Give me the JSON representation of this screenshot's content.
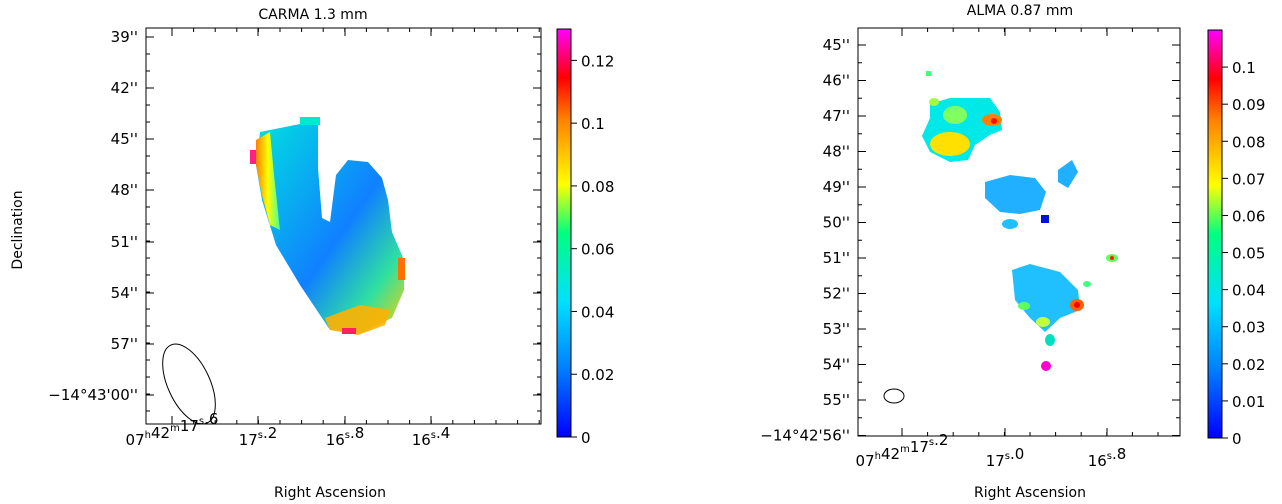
{
  "chart_data": [
    {
      "type": "heatmap",
      "title": "CARMA 1.3 mm",
      "xlabel": "Right Ascension",
      "ylabel": "Declination",
      "x_ticks": [
        "07h42m17s.6",
        "17s.2",
        "16s.8",
        "16s.4"
      ],
      "y_ticks": [
        "39''",
        "42''",
        "45''",
        "48''",
        "51''",
        "54''",
        "57''",
        "−14°43'00''"
      ],
      "colorbar": {
        "min": 0,
        "max": 0.13,
        "ticks": [
          "0",
          "0.02",
          "0.04",
          "0.06",
          "0.08",
          "0.1",
          "0.12"
        ],
        "tick_values": [
          0,
          0.02,
          0.04,
          0.06,
          0.08,
          0.1,
          0.12
        ]
      },
      "beam": "ellipse (lower-left)"
    },
    {
      "type": "heatmap",
      "title": "ALMA 0.87 mm",
      "xlabel": "Right Ascension",
      "ylabel": "",
      "x_ticks": [
        "07h42m17s.2",
        "17s.0",
        "16s.8"
      ],
      "y_ticks": [
        "45''",
        "46''",
        "47''",
        "48''",
        "49''",
        "50''",
        "51''",
        "52''",
        "53''",
        "54''",
        "55''",
        "−14°42'56''"
      ],
      "colorbar": {
        "min": 0,
        "max": 0.11,
        "ticks": [
          "0",
          "0.01",
          "0.02",
          "0.03",
          "0.04",
          "0.05",
          "0.06",
          "0.07",
          "0.08",
          "0.09",
          "0.1"
        ],
        "tick_values": [
          0,
          0.01,
          0.02,
          0.03,
          0.04,
          0.05,
          0.06,
          0.07,
          0.08,
          0.09,
          0.1
        ]
      },
      "beam": "ellipse (lower-left)"
    }
  ],
  "colors": {
    "colormap": [
      "#0000ff",
      "#00bfff",
      "#00ff99",
      "#ffff00",
      "#ff8000",
      "#ff0000",
      "#ff00ff"
    ]
  }
}
